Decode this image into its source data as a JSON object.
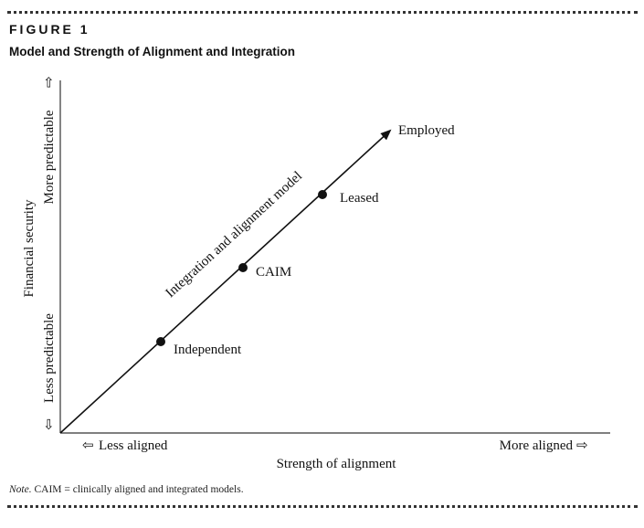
{
  "figure": {
    "label": "FIGURE 1",
    "title": "Model and Strength of Alignment and Integration"
  },
  "diagram": {
    "y_axis": {
      "label": "Financial security",
      "low": "Less predictable",
      "high": "More predictable"
    },
    "x_axis": {
      "label": "Strength of alignment",
      "low": "Less aligned",
      "high": "More aligned"
    },
    "arrow_label": "Integration and alignment model",
    "arrow_end_label": "Employed",
    "points": [
      {
        "label": "Independent"
      },
      {
        "label": "CAIM"
      },
      {
        "label": "Leased"
      }
    ],
    "arrow_glyph_left": "⇦",
    "arrow_glyph_right": "⇨"
  },
  "note": {
    "prefix": "Note.",
    "text": "CAIM = clinically aligned and integrated models."
  }
}
